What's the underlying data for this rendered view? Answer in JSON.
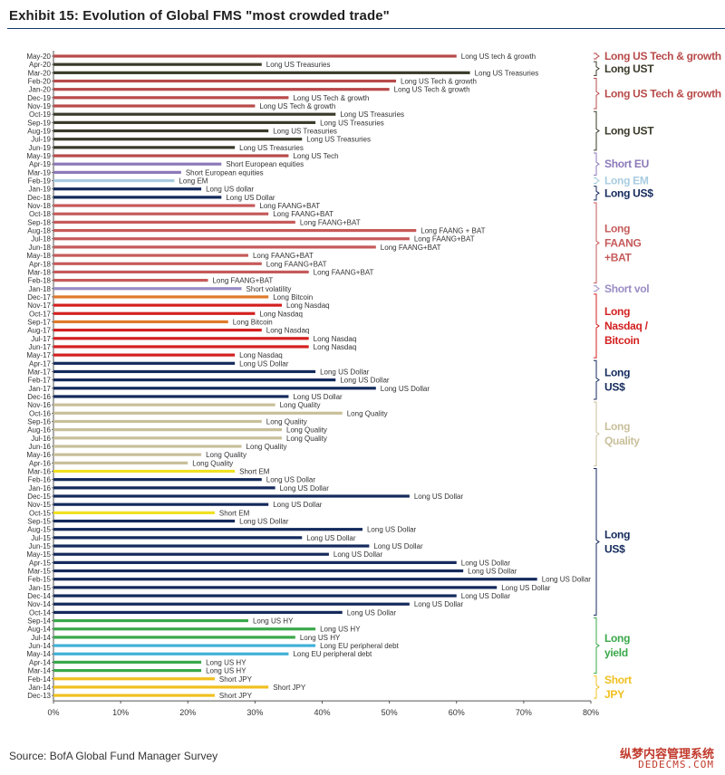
{
  "title": "Exhibit 15: Evolution of Global FMS \"most crowded trade\"",
  "source": "Source: BofA Global Fund Manager Survey",
  "watermark": {
    "line1": "纵梦内容管理系统",
    "line2": "DEDECMS.COM"
  },
  "colors": {
    "ust": "#3a3a2a",
    "tech": "#b84a4a",
    "eu": "#8b79b8",
    "em": "#a8cce0",
    "usd": "#142a5c",
    "faang": "#c65a5a",
    "vol": "#9a8cc4",
    "bitcoin": "#e07a2a",
    "nasdaq": "#d42020",
    "quality": "#c8bf9a",
    "emy": "#f0e020",
    "hy": "#3aa84a",
    "eupd": "#40b0d8",
    "jpy": "#f0c020"
  },
  "chart_data": {
    "type": "bar",
    "orientation": "horizontal",
    "title": "Evolution of Global FMS \"most crowded trade\"",
    "xlabel": "",
    "ylabel": "",
    "xlim": [
      0,
      80
    ],
    "xticks": [
      "0%",
      "10%",
      "20%",
      "30%",
      "40%",
      "50%",
      "60%",
      "70%",
      "80%"
    ],
    "series": [
      {
        "month": "May-20",
        "label": "Long US tech & growth",
        "value": 60,
        "group": "tech"
      },
      {
        "month": "Apr-20",
        "label": "Long US Treasuries",
        "value": 31,
        "group": "ust"
      },
      {
        "month": "Mar-20",
        "label": "Long US Treasuries",
        "value": 62,
        "group": "ust"
      },
      {
        "month": "Feb-20",
        "label": "Long US Tech & growth",
        "value": 51,
        "group": "tech"
      },
      {
        "month": "Jan-20",
        "label": "Long US Tech & growth",
        "value": 50,
        "group": "tech"
      },
      {
        "month": "Dec-19",
        "label": "Long US Tech & growth",
        "value": 35,
        "group": "tech"
      },
      {
        "month": "Nov-19",
        "label": "Long US Tech & growth",
        "value": 30,
        "group": "tech"
      },
      {
        "month": "Oct-19",
        "label": "Long US Treasuries",
        "value": 42,
        "group": "ust"
      },
      {
        "month": "Sep-19",
        "label": "Long US Treasuries",
        "value": 39,
        "group": "ust"
      },
      {
        "month": "Aug-19",
        "label": "Long US Treasuries",
        "value": 32,
        "group": "ust"
      },
      {
        "month": "Jul-19",
        "label": "Long US Treasuries",
        "value": 37,
        "group": "ust"
      },
      {
        "month": "Jun-19",
        "label": "Long US Treasuries",
        "value": 27,
        "group": "ust"
      },
      {
        "month": "May-19",
        "label": "Long US Tech",
        "value": 35,
        "group": "tech"
      },
      {
        "month": "Apr-19",
        "label": "Short European equities",
        "value": 25,
        "group": "eu"
      },
      {
        "month": "Mar-19",
        "label": "Short European equities",
        "value": 19,
        "group": "eu"
      },
      {
        "month": "Feb-19",
        "label": "Long EM",
        "value": 18,
        "group": "em"
      },
      {
        "month": "Jan-19",
        "label": "Long US dollar",
        "value": 22,
        "group": "usd"
      },
      {
        "month": "Dec-18",
        "label": "Long US Dollar",
        "value": 25,
        "group": "usd"
      },
      {
        "month": "Nov-18",
        "label": "Long FAANG+BAT",
        "value": 30,
        "group": "faang"
      },
      {
        "month": "Oct-18",
        "label": "Long FAANG+BAT",
        "value": 32,
        "group": "faang"
      },
      {
        "month": "Sep-18",
        "label": "Long FAANG+BAT",
        "value": 36,
        "group": "faang"
      },
      {
        "month": "Aug-18",
        "label": "Long FAANG + BAT",
        "value": 54,
        "group": "faang"
      },
      {
        "month": "Jul-18",
        "label": "Long FAANG+BAT",
        "value": 53,
        "group": "faang"
      },
      {
        "month": "Jun-18",
        "label": "Long FAANG+BAT",
        "value": 48,
        "group": "faang"
      },
      {
        "month": "May-18",
        "label": "Long FAANG+BAT",
        "value": 29,
        "group": "faang"
      },
      {
        "month": "Apr-18",
        "label": "Long FAANG+BAT",
        "value": 31,
        "group": "faang"
      },
      {
        "month": "Mar-18",
        "label": "Long FAANG+BAT",
        "value": 38,
        "group": "faang"
      },
      {
        "month": "Feb-18",
        "label": "Long FAANG+BAT",
        "value": 23,
        "group": "faang"
      },
      {
        "month": "Jan-18",
        "label": "Short volatility",
        "value": 28,
        "group": "vol"
      },
      {
        "month": "Dec-17",
        "label": "Long Bitcoin",
        "value": 32,
        "group": "bitcoin"
      },
      {
        "month": "Nov-17",
        "label": "Long Nasdaq",
        "value": 34,
        "group": "nasdaq"
      },
      {
        "month": "Oct-17",
        "label": "Long Nasdaq",
        "value": 30,
        "group": "nasdaq"
      },
      {
        "month": "Sep-17",
        "label": "Long Bitcoin",
        "value": 26,
        "group": "bitcoin"
      },
      {
        "month": "Aug-17",
        "label": "Long Nasdaq",
        "value": 31,
        "group": "nasdaq"
      },
      {
        "month": "Jul-17",
        "label": "Long Nasdaq",
        "value": 38,
        "group": "nasdaq"
      },
      {
        "month": "Jun-17",
        "label": "Long Nasdaq",
        "value": 38,
        "group": "nasdaq"
      },
      {
        "month": "May-17",
        "label": "Long Nasdaq",
        "value": 27,
        "group": "nasdaq"
      },
      {
        "month": "Apr-17",
        "label": "Long US Dollar",
        "value": 27,
        "group": "usd"
      },
      {
        "month": "Mar-17",
        "label": "Long US Dollar",
        "value": 39,
        "group": "usd"
      },
      {
        "month": "Feb-17",
        "label": "Long US Dollar",
        "value": 42,
        "group": "usd"
      },
      {
        "month": "Jan-17",
        "label": "Long US Dollar",
        "value": 48,
        "group": "usd"
      },
      {
        "month": "Dec-16",
        "label": "Long US Dollar",
        "value": 35,
        "group": "usd"
      },
      {
        "month": "Nov-16",
        "label": "Long Quality",
        "value": 33,
        "group": "quality"
      },
      {
        "month": "Oct-16",
        "label": "Long Quality",
        "value": 43,
        "group": "quality"
      },
      {
        "month": "Sep-16",
        "label": "Long Quality",
        "value": 31,
        "group": "quality"
      },
      {
        "month": "Aug-16",
        "label": "Long Quality",
        "value": 34,
        "group": "quality"
      },
      {
        "month": "Jul-16",
        "label": "Long Quality",
        "value": 34,
        "group": "quality"
      },
      {
        "month": "Jun-16",
        "label": "Long Quality",
        "value": 28,
        "group": "quality"
      },
      {
        "month": "May-16",
        "label": "Long Quality",
        "value": 22,
        "group": "quality"
      },
      {
        "month": "Apr-16",
        "label": "Long Quality",
        "value": 20,
        "group": "quality"
      },
      {
        "month": "Mar-16",
        "label": "Short EM",
        "value": 27,
        "group": "emy"
      },
      {
        "month": "Feb-16",
        "label": "Long US Dollar",
        "value": 31,
        "group": "usd"
      },
      {
        "month": "Jan-16",
        "label": "Long US Dollar",
        "value": 33,
        "group": "usd"
      },
      {
        "month": "Dec-15",
        "label": "Long US Dollar",
        "value": 53,
        "group": "usd"
      },
      {
        "month": "Nov-15",
        "label": "Long US Dollar",
        "value": 32,
        "group": "usd"
      },
      {
        "month": "Oct-15",
        "label": "Short EM",
        "value": 24,
        "group": "emy"
      },
      {
        "month": "Sep-15",
        "label": "Long US Dollar",
        "value": 27,
        "group": "usd"
      },
      {
        "month": "Aug-15",
        "label": "Long US Dollar",
        "value": 46,
        "group": "usd"
      },
      {
        "month": "Jul-15",
        "label": "Long US Dollar",
        "value": 37,
        "group": "usd"
      },
      {
        "month": "Jun-15",
        "label": "Long US Dollar",
        "value": 47,
        "group": "usd"
      },
      {
        "month": "May-15",
        "label": "Long US Dollar",
        "value": 41,
        "group": "usd"
      },
      {
        "month": "Apr-15",
        "label": "Long US Dollar",
        "value": 60,
        "group": "usd"
      },
      {
        "month": "Mar-15",
        "label": "Long US Dollar",
        "value": 61,
        "group": "usd"
      },
      {
        "month": "Feb-15",
        "label": "Long US Dollar",
        "value": 72,
        "group": "usd"
      },
      {
        "month": "Jan-15",
        "label": "Long US Dollar",
        "value": 66,
        "group": "usd"
      },
      {
        "month": "Dec-14",
        "label": "Long US Dollar",
        "value": 60,
        "group": "usd"
      },
      {
        "month": "Nov-14",
        "label": "Long US Dollar",
        "value": 53,
        "group": "usd"
      },
      {
        "month": "Oct-14",
        "label": "Long US Dollar",
        "value": 43,
        "group": "usd"
      },
      {
        "month": "Sep-14",
        "label": "Long US HY",
        "value": 29,
        "group": "hy"
      },
      {
        "month": "Aug-14",
        "label": "Long US HY",
        "value": 39,
        "group": "hy"
      },
      {
        "month": "Jul-14",
        "label": "Long US HY",
        "value": 36,
        "group": "hy"
      },
      {
        "month": "Jun-14",
        "label": "Long EU peripheral debt",
        "value": 39,
        "group": "eupd"
      },
      {
        "month": "May-14",
        "label": "Long EU peripheral debt",
        "value": 35,
        "group": "eupd"
      },
      {
        "month": "Apr-14",
        "label": "Long US HY",
        "value": 22,
        "group": "hy"
      },
      {
        "month": "Mar-14",
        "label": "Long US HY",
        "value": 22,
        "group": "hy"
      },
      {
        "month": "Feb-14",
        "label": "Short JPY",
        "value": 24,
        "group": "jpy"
      },
      {
        "month": "Jan-14",
        "label": "Short JPY",
        "value": 32,
        "group": "jpy"
      },
      {
        "month": "Dec-13",
        "label": "Short JPY",
        "value": 24,
        "group": "jpy"
      }
    ],
    "annotations": [
      {
        "lines": [
          "Long US Tech & growth"
        ],
        "group": "tech",
        "from": 0,
        "to": 0
      },
      {
        "lines": [
          "Long UST"
        ],
        "group": "ust",
        "from": 1,
        "to": 2
      },
      {
        "lines": [
          "Long US Tech & growth"
        ],
        "group": "tech",
        "from": 3,
        "to": 6
      },
      {
        "lines": [
          "Long UST"
        ],
        "group": "ust",
        "from": 7,
        "to": 11
      },
      {
        "lines": [
          "Short EU"
        ],
        "group": "eu",
        "from": 12,
        "to": 14
      },
      {
        "lines": [
          "Long EM"
        ],
        "group": "em",
        "from": 15,
        "to": 15
      },
      {
        "lines": [
          "Long US$"
        ],
        "group": "usd",
        "from": 16,
        "to": 17
      },
      {
        "lines": [
          "Long",
          "FAANG",
          "+BAT"
        ],
        "group": "faang",
        "from": 18,
        "to": 27
      },
      {
        "lines": [
          "Short vol"
        ],
        "group": "vol",
        "from": 28,
        "to": 28
      },
      {
        "lines": [
          "Long",
          "Nasdaq /",
          "Bitcoin"
        ],
        "group": "nasdaq",
        "from": 29,
        "to": 36
      },
      {
        "lines": [
          "Long",
          "US$"
        ],
        "group": "usd",
        "from": 37,
        "to": 41
      },
      {
        "lines": [
          "Long",
          "Quality"
        ],
        "group": "quality",
        "from": 42,
        "to": 49
      },
      {
        "lines": [
          "Long",
          "US$"
        ],
        "group": "usd",
        "from": 50,
        "to": 67
      },
      {
        "lines": [
          "Long",
          "yield"
        ],
        "group": "hy",
        "from": 68,
        "to": 74
      },
      {
        "lines": [
          "Short",
          "JPY"
        ],
        "group": "jpy",
        "from": 75,
        "to": 77
      }
    ]
  }
}
